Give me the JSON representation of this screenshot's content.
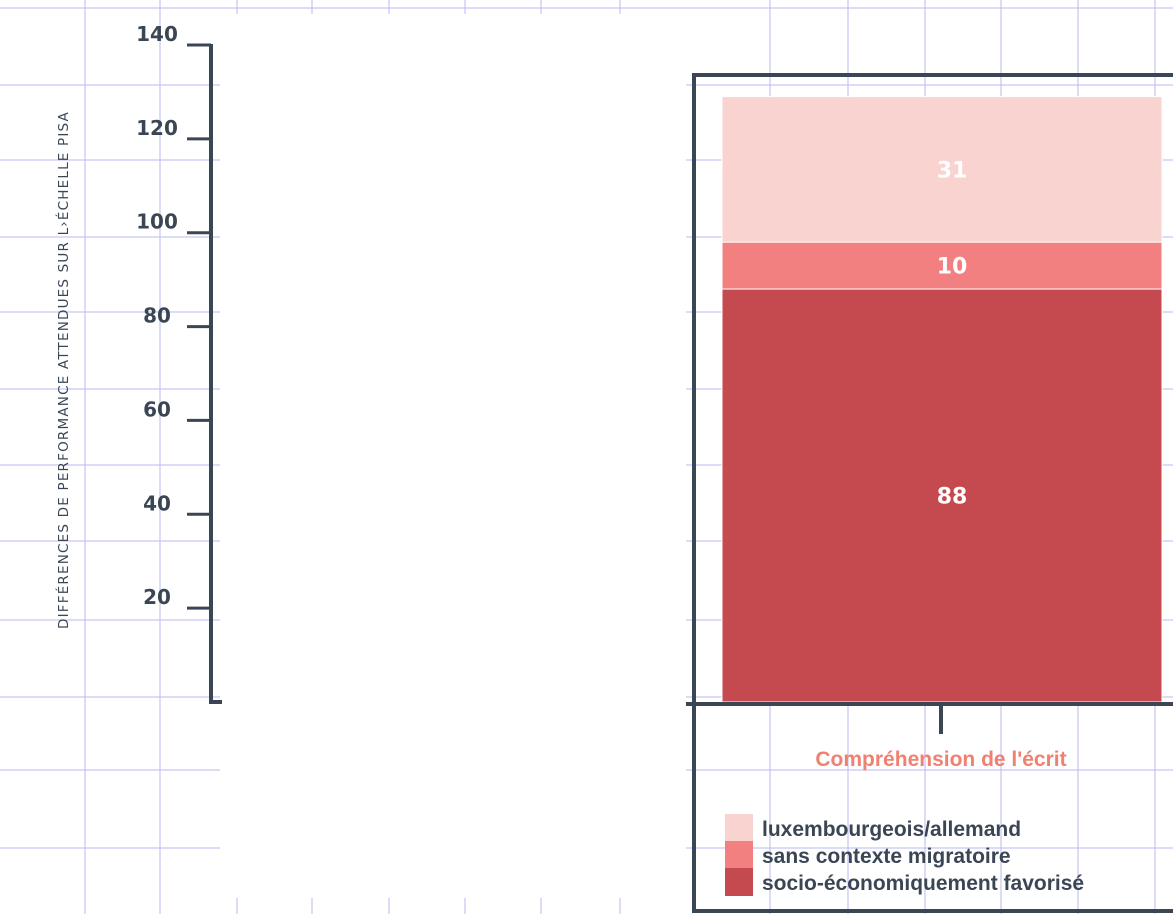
{
  "chart_data": {
    "type": "bar",
    "stacked": true,
    "ylabel": "DIFFÉRENCES DE PERFORMANCE ATTENDUES SUR L›ÉCHELLE PISA",
    "xlabel": "",
    "ylim": [
      0,
      140
    ],
    "yticks": [
      20,
      40,
      60,
      80,
      100,
      120,
      140
    ],
    "categories": [
      "Compréhension de l'écrit"
    ],
    "series": [
      {
        "name": "socio-économiquement favorisé",
        "values": [
          88
        ],
        "color": "#c54a4f"
      },
      {
        "name": "sans contexte migratoire",
        "values": [
          10
        ],
        "color": "#f28080"
      },
      {
        "name": "luxembourgeois/allemand",
        "values": [
          31
        ],
        "color": "#f9d3cf"
      }
    ],
    "legend_order": [
      "luxembourgeois/allemand",
      "sans contexte migratoire",
      "socio-économiquement favorisé"
    ],
    "legend_position": "bottom-left",
    "grid": true,
    "colors": {
      "axis": "#3b4654",
      "grid": "#b9b9f2",
      "category_label": "#f08070"
    }
  }
}
